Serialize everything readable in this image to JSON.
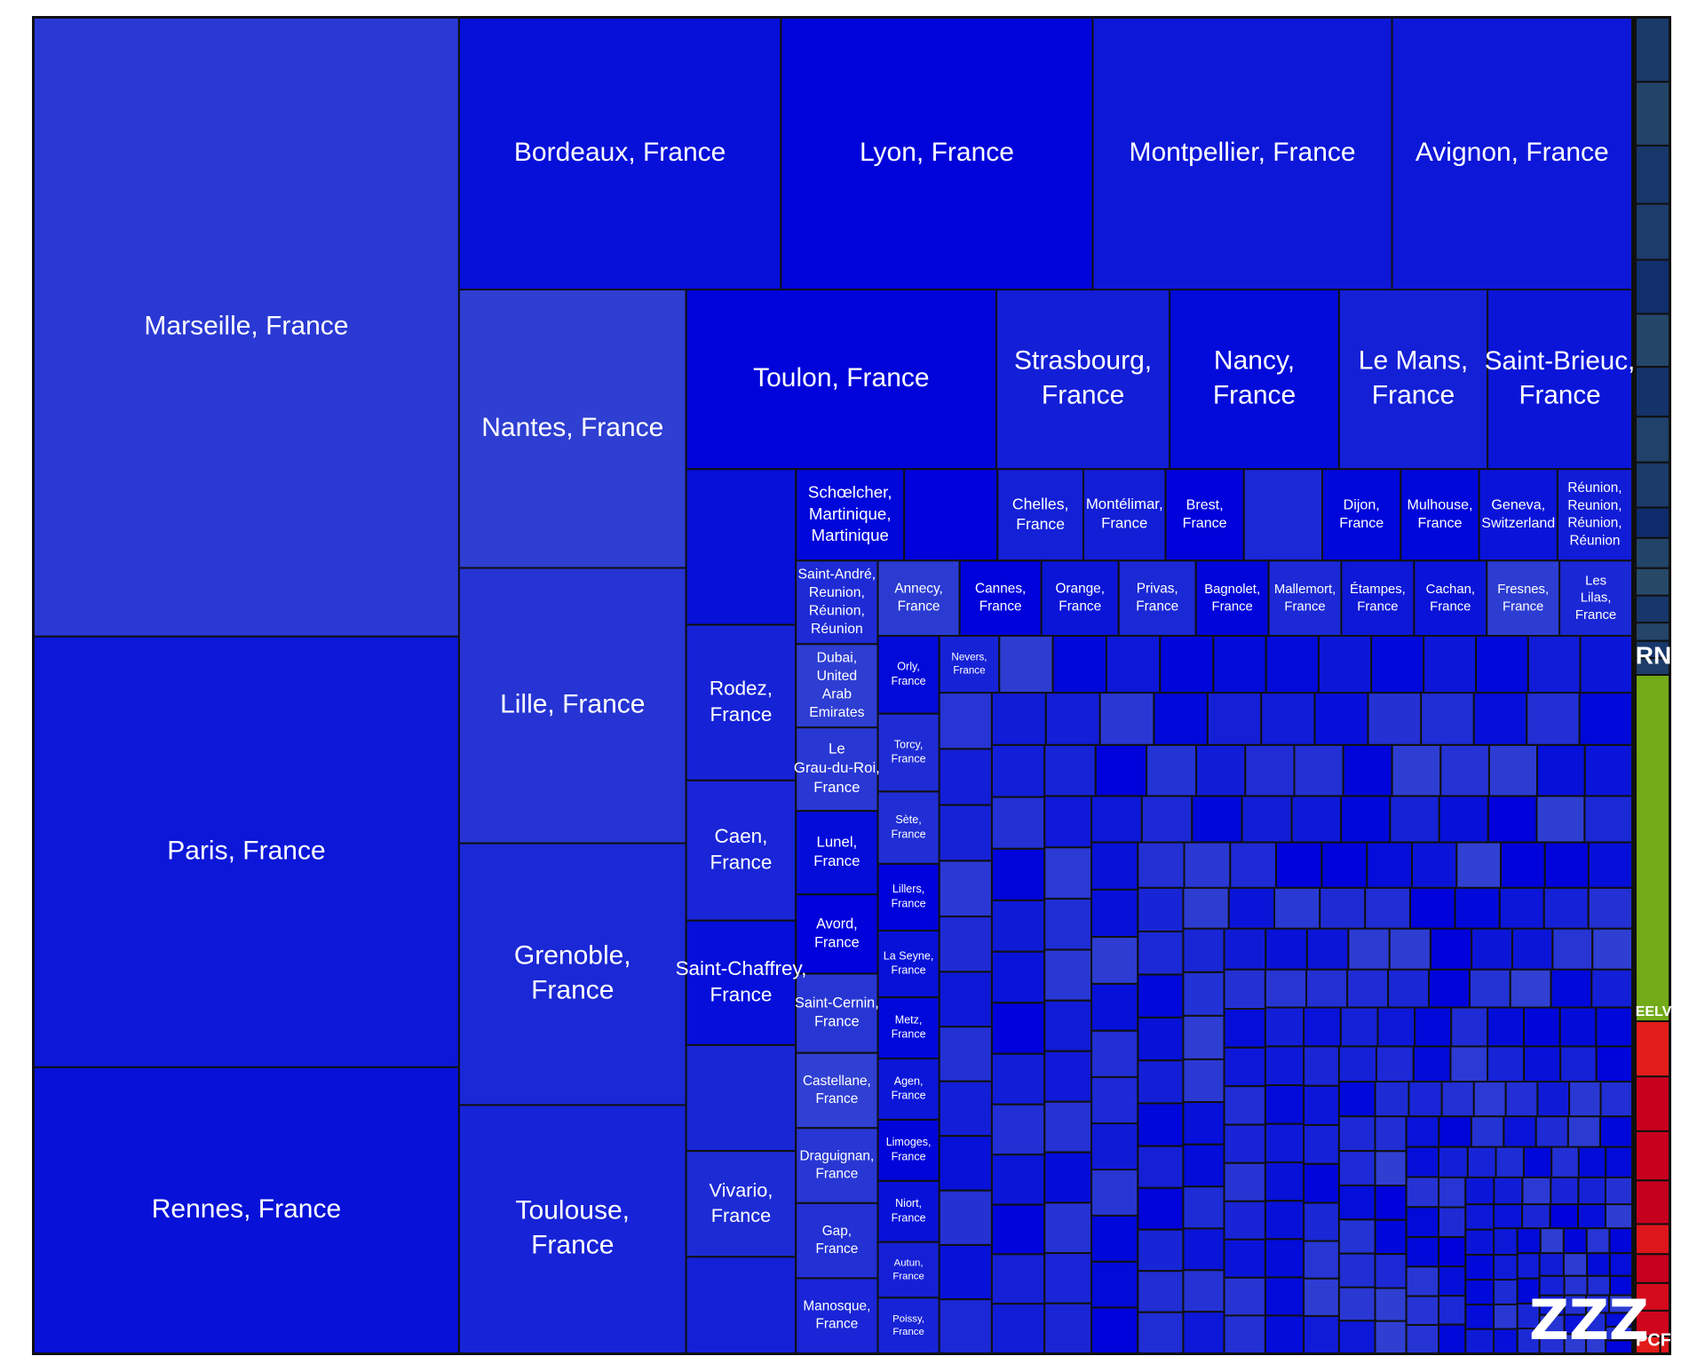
{
  "chart_data": {
    "type": "treemap",
    "watermark": "ZZZ",
    "groups": [
      {
        "name": "ZZZ",
        "color": "#0a14d8"
      },
      {
        "name": "RN",
        "color": "#1a3a6a"
      },
      {
        "name": "EELV",
        "color": "#7ab317"
      },
      {
        "name": "PCF",
        "color": "#d40c1c"
      }
    ],
    "leaves": [
      {
        "group": "ZZZ",
        "label": "Marseille, France",
        "value": 3850
      },
      {
        "group": "ZZZ",
        "label": "Paris, France",
        "value": 2680
      },
      {
        "group": "ZZZ",
        "label": "Rennes, France",
        "value": 1780
      },
      {
        "group": "ZZZ",
        "label": "Bordeaux, France",
        "value": 1280
      },
      {
        "group": "ZZZ",
        "label": "Lyon, France",
        "value": 1240
      },
      {
        "group": "ZZZ",
        "label": "Montpellier, France",
        "value": 1190
      },
      {
        "group": "ZZZ",
        "label": "Avignon, France",
        "value": 955
      },
      {
        "group": "ZZZ",
        "label": "Lille, France",
        "value": 915
      },
      {
        "group": "ZZZ",
        "label": "Nantes, France",
        "value": 925
      },
      {
        "group": "ZZZ",
        "label": "Grenoble, France",
        "value": 870
      },
      {
        "group": "ZZZ",
        "label": "Toulouse, France",
        "value": 825
      },
      {
        "group": "ZZZ",
        "label": "Toulon, France",
        "value": 815
      },
      {
        "group": "ZZZ",
        "label": "Strasbourg, France",
        "value": 455
      },
      {
        "group": "ZZZ",
        "label": "Nancy, France",
        "value": 445
      },
      {
        "group": "ZZZ",
        "label": "Le Mans, France",
        "value": 390
      },
      {
        "group": "ZZZ",
        "label": "Saint-Brieuc, France",
        "value": 380
      },
      {
        "group": "ZZZ",
        "label": "",
        "value": 250
      },
      {
        "group": "ZZZ",
        "label": "Rodez, France",
        "value": 250
      },
      {
        "group": "ZZZ",
        "label": "Caen, France",
        "value": 225
      },
      {
        "group": "ZZZ",
        "label": "Saint-Chaffrey, France",
        "value": 200
      },
      {
        "group": "ZZZ",
        "label": "",
        "value": 170
      },
      {
        "group": "ZZZ",
        "label": "Vivario, France",
        "value": 170
      },
      {
        "group": "ZZZ",
        "label": "",
        "value": 155
      },
      {
        "group": "ZZZ",
        "label": "Schœlcher, Martinique, Martinique",
        "value": 145
      },
      {
        "group": "ZZZ",
        "label": "Réunion, Reunion, Réunion, Réunion",
        "value": 100
      },
      {
        "group": "ZZZ",
        "label": "Brest, France",
        "value": 105
      },
      {
        "group": "ZZZ",
        "label": "",
        "value": 125
      },
      {
        "group": "ZZZ",
        "label": "Chelles, France",
        "value": 115
      },
      {
        "group": "ZZZ",
        "label": "Montélimar, France",
        "value": 110
      },
      {
        "group": "ZZZ",
        "label": "",
        "value": 105
      },
      {
        "group": "ZZZ",
        "label": "Dijon, France",
        "value": 105
      },
      {
        "group": "ZZZ",
        "label": "Mulhouse, France",
        "value": 105
      },
      {
        "group": "ZZZ",
        "label": "Geneva, Switzerland",
        "value": 105
      },
      {
        "group": "ZZZ",
        "label": "Saint-André, Reunion, Réunion, Réunion",
        "value": 100
      },
      {
        "group": "ZZZ",
        "label": "Avord, France",
        "value": 95
      },
      {
        "group": "ZZZ",
        "label": "Castellane, France",
        "value": 90
      },
      {
        "group": "ZZZ",
        "label": "Draguignan, France",
        "value": 90
      },
      {
        "group": "ZZZ",
        "label": "Gap, France",
        "value": 90
      },
      {
        "group": "ZZZ",
        "label": "Manosque, France",
        "value": 90
      },
      {
        "group": "ZZZ",
        "label": "Orange, France",
        "value": 85
      },
      {
        "group": "ZZZ",
        "label": "Privas, France",
        "value": 85
      },
      {
        "group": "ZZZ",
        "label": "Dubai, United Arab Emirates",
        "value": 100
      },
      {
        "group": "ZZZ",
        "label": "Le Grau-du-Roi, France",
        "value": 100
      },
      {
        "group": "ZZZ",
        "label": "Lunel, France",
        "value": 100
      },
      {
        "group": "ZZZ",
        "label": "Saint-Cernin, France",
        "value": 95
      },
      {
        "group": "ZZZ",
        "label": "Annecy, France",
        "value": 90
      },
      {
        "group": "ZZZ",
        "label": "Cannes, France",
        "value": 90
      },
      {
        "group": "ZZZ",
        "label": "Bagnolet, France",
        "value": 80
      },
      {
        "group": "ZZZ",
        "label": "Mallemort, France",
        "value": 80
      },
      {
        "group": "ZZZ",
        "label": "Étampes, France",
        "value": 80
      },
      {
        "group": "ZZZ",
        "label": "Cachan, France",
        "value": 80
      },
      {
        "group": "ZZZ",
        "label": "Fresnes, France",
        "value": 80
      },
      {
        "group": "ZZZ",
        "label": "Les Lilas, France",
        "value": 80
      },
      {
        "group": "ZZZ",
        "label": "Orly, France",
        "value": 70
      },
      {
        "group": "ZZZ",
        "label": "Torcy, France",
        "value": 70
      },
      {
        "group": "ZZZ",
        "label": "Sète, France",
        "value": 65
      },
      {
        "group": "ZZZ",
        "label": "Lillers, France",
        "value": 60
      },
      {
        "group": "ZZZ",
        "label": "La Seyne, France",
        "value": 60
      },
      {
        "group": "ZZZ",
        "label": "Metz, France",
        "value": 55
      },
      {
        "group": "ZZZ",
        "label": "Agen, France",
        "value": 55
      },
      {
        "group": "ZZZ",
        "label": "Limoges, France",
        "value": 55
      },
      {
        "group": "ZZZ",
        "label": "Niort, France",
        "value": 55
      },
      {
        "group": "ZZZ",
        "label": "Autun, France",
        "value": 50
      },
      {
        "group": "ZZZ",
        "label": "Poissy, France",
        "value": 50
      },
      {
        "group": "ZZZ",
        "label": "Nevers, France",
        "value": 50
      }
    ],
    "small_cells": {
      "group": "ZZZ",
      "count": 300,
      "value_range": [
        5,
        45
      ]
    },
    "RN": {
      "count": 16,
      "value_range": [
        20,
        180
      ]
    },
    "EELV": {
      "count": 1,
      "value": 1050
    },
    "PCF": {
      "count": 10,
      "value_range": [
        20,
        420
      ]
    }
  }
}
